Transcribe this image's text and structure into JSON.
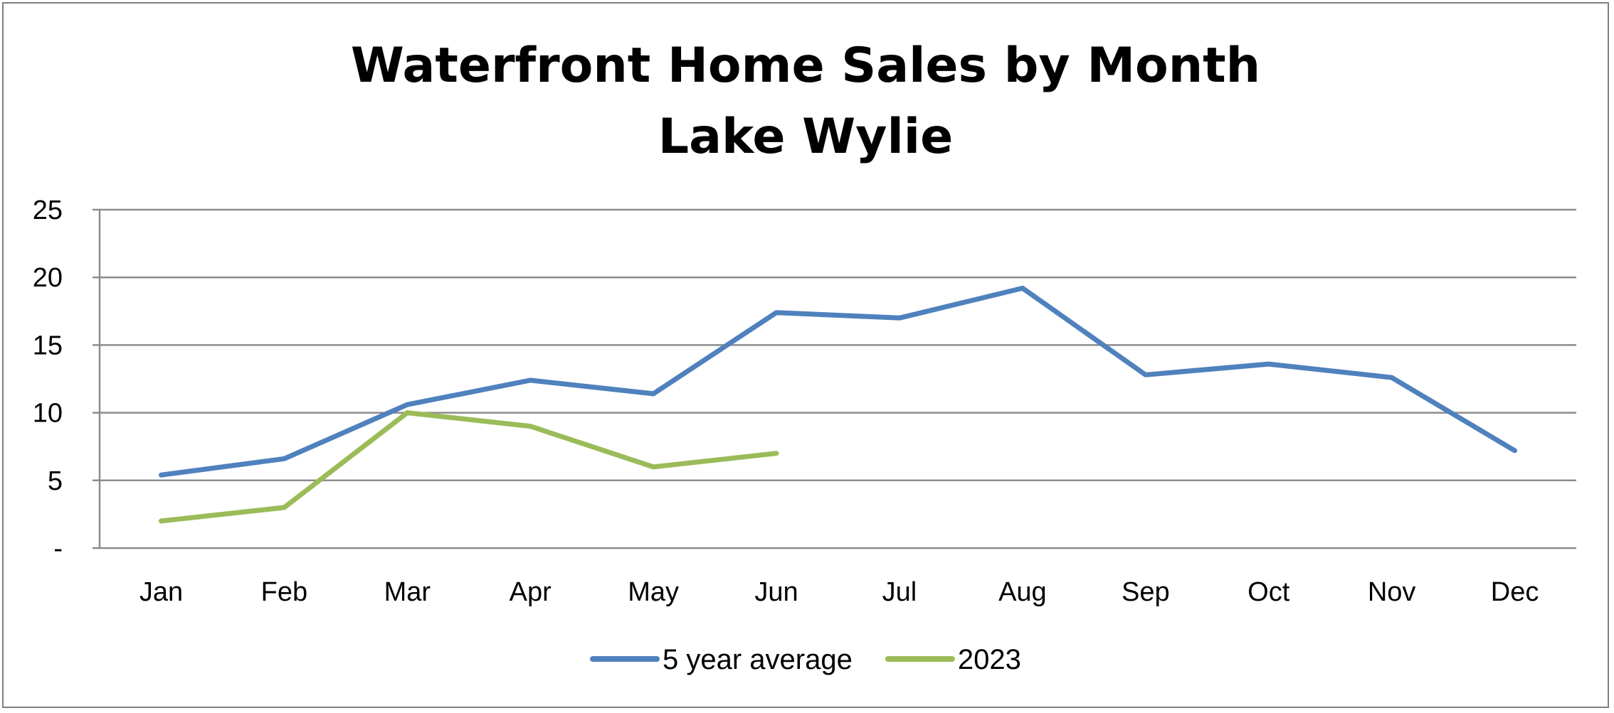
{
  "chart_data": {
    "type": "line",
    "title": "Waterfront Home Sales by Month",
    "subtitle": "Lake Wylie",
    "xlabel": "",
    "ylabel": "",
    "categories": [
      "Jan",
      "Feb",
      "Mar",
      "Apr",
      "May",
      "Jun",
      "Jul",
      "Aug",
      "Sep",
      "Oct",
      "Nov",
      "Dec"
    ],
    "ylim": [
      0,
      25
    ],
    "yticks": [
      {
        "value": 0,
        "label": "-"
      },
      {
        "value": 5,
        "label": "5"
      },
      {
        "value": 10,
        "label": "10"
      },
      {
        "value": 15,
        "label": "15"
      },
      {
        "value": 20,
        "label": "20"
      },
      {
        "value": 25,
        "label": "25"
      }
    ],
    "grid": true,
    "legend_position": "bottom",
    "series": [
      {
        "name": "5 year average",
        "color": "#4f81bd",
        "values": [
          5.4,
          6.6,
          10.6,
          12.4,
          11.4,
          17.4,
          17.0,
          19.2,
          12.8,
          13.6,
          12.6,
          7.2
        ]
      },
      {
        "name": "2023",
        "color": "#9bbb59",
        "values": [
          2,
          3,
          10,
          9,
          6,
          7,
          null,
          null,
          null,
          null,
          null,
          null
        ]
      }
    ]
  }
}
